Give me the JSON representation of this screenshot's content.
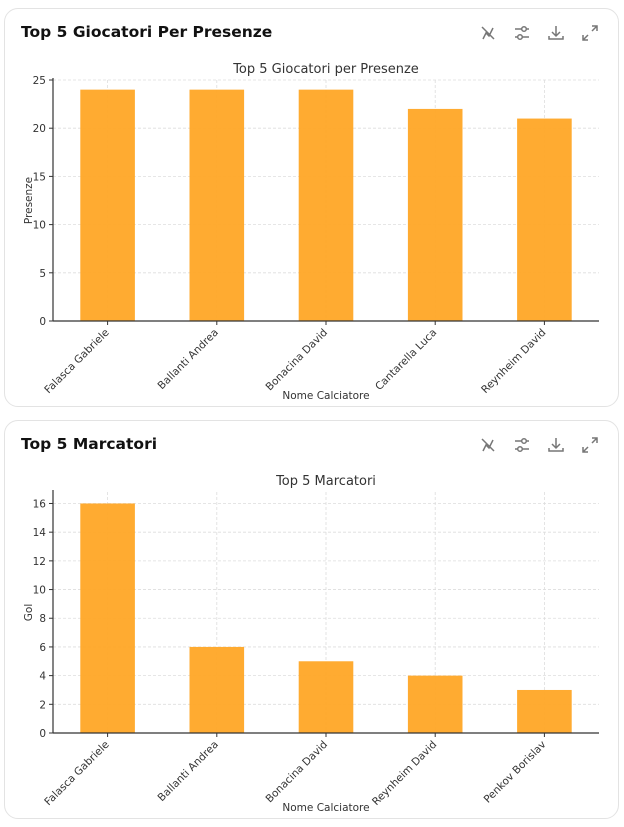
{
  "cards": [
    {
      "title": "Top 5 Giocatori Per Presenze",
      "chart_data": {
        "type": "bar",
        "title": "Top 5 Giocatori per Presenze",
        "xlabel": "Nome Calciatore",
        "ylabel": "Presenze",
        "categories": [
          "Falasca Gabriele",
          "Ballanti Andrea",
          "Bonacina David",
          "Cantarella Luca",
          "Reynheim David"
        ],
        "values": [
          24,
          24,
          24,
          22,
          21
        ],
        "ylim": [
          0,
          25
        ],
        "yticks": [
          0,
          5,
          10,
          15,
          20,
          25
        ],
        "grid": true,
        "color": "#FFA726"
      }
    },
    {
      "title": "Top 5 Marcatori",
      "chart_data": {
        "type": "bar",
        "title": "Top 5 Marcatori",
        "xlabel": "Nome Calciatore",
        "ylabel": "Gol",
        "categories": [
          "Falasca Gabriele",
          "Ballanti Andrea",
          "Bonacina David",
          "Reynheim David",
          "Penkov Borislav"
        ],
        "values": [
          16,
          6,
          5,
          4,
          3
        ],
        "ylim": [
          0,
          16.8
        ],
        "yticks": [
          0,
          2,
          4,
          6,
          8,
          10,
          12,
          14,
          16
        ],
        "grid": true,
        "color": "#FFA726"
      }
    }
  ],
  "toolbar_icons": [
    "chart-toggle-icon",
    "filter-sliders-icon",
    "download-icon",
    "expand-icon"
  ]
}
